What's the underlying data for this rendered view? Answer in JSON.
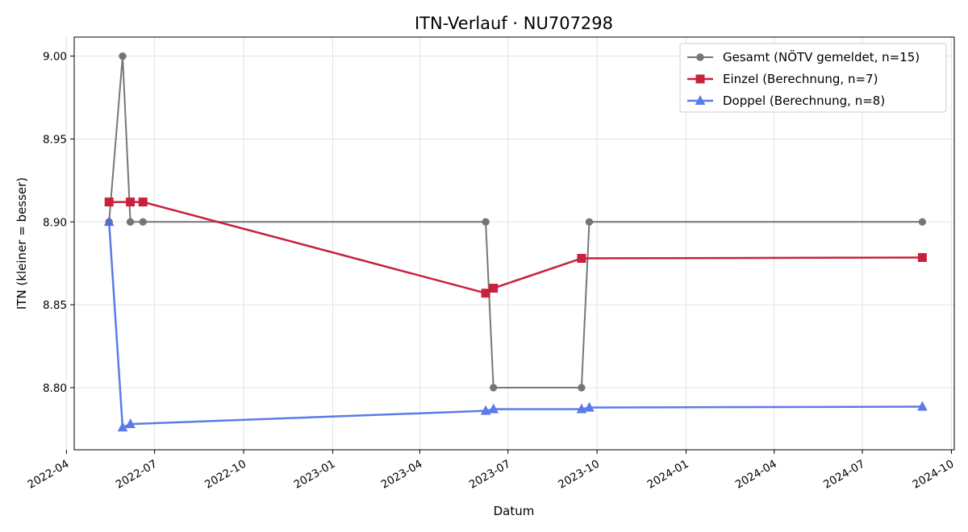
{
  "chart_data": {
    "type": "line",
    "title": "ITN-Verlauf · NU707298",
    "xlabel": "Datum",
    "ylabel": "ITN  (kleiner = besser)",
    "x_is_date": true,
    "xlim": [
      "2022-04-09",
      "2024-10-04"
    ],
    "ylim": [
      8.7625,
      9.0115
    ],
    "xticks": [
      "2022-04-01",
      "2022-07-01",
      "2022-10-01",
      "2023-01-01",
      "2023-04-01",
      "2023-07-01",
      "2023-10-01",
      "2024-01-01",
      "2024-04-01",
      "2024-07-01",
      "2024-10-01"
    ],
    "xtick_labels": [
      "2022-04",
      "2022-07",
      "2022-10",
      "2023-01",
      "2023-04",
      "2023-07",
      "2023-10",
      "2024-01",
      "2024-04",
      "2024-07",
      "2024-10"
    ],
    "yticks": [
      8.8,
      8.85,
      8.9,
      8.95,
      9.0
    ],
    "ytick_labels": [
      "8.80",
      "8.85",
      "8.90",
      "8.95",
      "9.00"
    ],
    "grid": true,
    "legend_position": "top-right",
    "series": [
      {
        "name": "Gesamt (NÖTV gemeldet, n=15)",
        "color": "#555555",
        "marker": "circle",
        "x": [
          "2022-05-15",
          "2022-05-29",
          "2022-06-06",
          "2022-06-19",
          "2023-06-08",
          "2023-06-16",
          "2023-09-15",
          "2023-09-23",
          "2024-09-01"
        ],
        "y": [
          8.9,
          9.0,
          8.9,
          8.9,
          8.9,
          8.8,
          8.8,
          8.9,
          8.9
        ]
      },
      {
        "name": "Einzel (Berechnung, n=7)",
        "color": "#c8213e",
        "marker": "square",
        "x": [
          "2022-05-15",
          "2022-06-06",
          "2022-06-19",
          "2023-06-08",
          "2023-06-16",
          "2023-09-15",
          "2024-09-01"
        ],
        "y": [
          8.912,
          8.912,
          8.912,
          8.857,
          8.86,
          8.878,
          8.8785
        ]
      },
      {
        "name": "Doppel (Berechnung, n=8)",
        "color": "#4a6de5",
        "marker": "triangle",
        "x": [
          "2022-05-15",
          "2022-05-29",
          "2022-06-06",
          "2023-06-08",
          "2023-06-16",
          "2023-09-15",
          "2023-09-23",
          "2024-09-01"
        ],
        "y": [
          8.9,
          8.776,
          8.778,
          8.786,
          8.787,
          8.787,
          8.788,
          8.7885
        ]
      }
    ]
  }
}
